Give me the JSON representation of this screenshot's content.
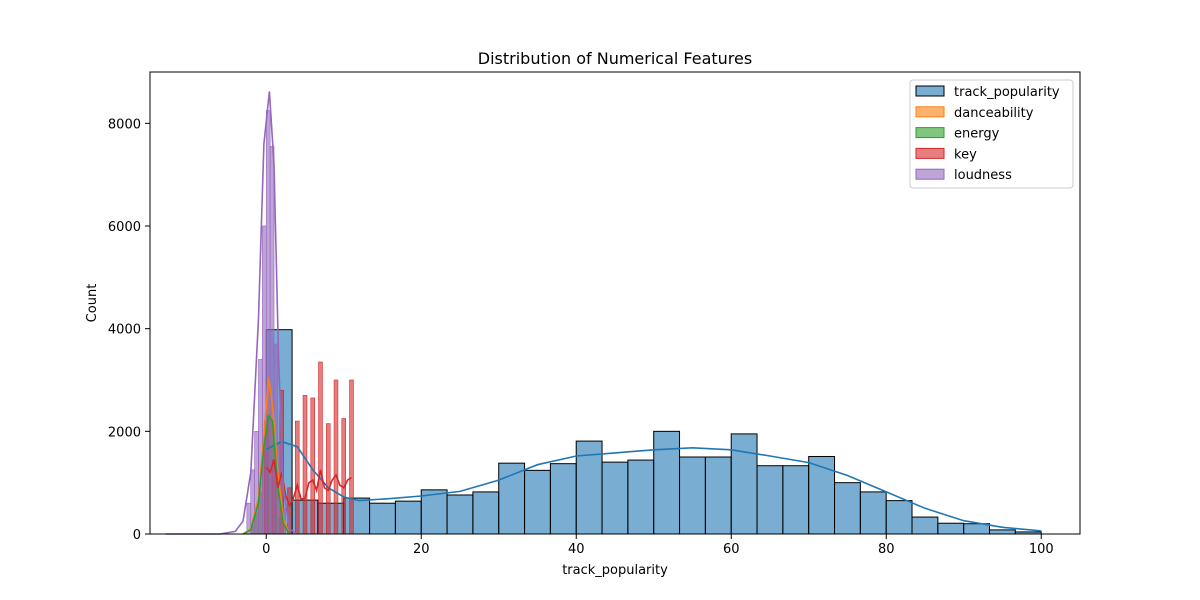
{
  "chart_data": {
    "type": "histogram",
    "title": "Distribution of Numerical Features",
    "xlabel": "track_popularity",
    "ylabel": "Count",
    "xlim": [
      -15,
      105
    ],
    "ylim": [
      0,
      9000
    ],
    "xticks": [
      0,
      20,
      40,
      60,
      80,
      100
    ],
    "yticks": [
      0,
      2000,
      4000,
      6000,
      8000
    ],
    "legend_position": "top-right",
    "series": [
      {
        "name": "track_popularity",
        "color": "#1f77b4",
        "bin_start": 0,
        "bin_width": 3.333,
        "values": [
          3980,
          660,
          600,
          700,
          600,
          640,
          860,
          760,
          820,
          1380,
          1240,
          1370,
          1810,
          1400,
          1440,
          2000,
          1500,
          1500,
          1950,
          1330,
          1330,
          1510,
          1000,
          820,
          650,
          330,
          210,
          200,
          80,
          40
        ],
        "kde": [
          [
            0,
            1650
          ],
          [
            2,
            1800
          ],
          [
            4,
            1700
          ],
          [
            6,
            1250
          ],
          [
            8,
            900
          ],
          [
            10,
            720
          ],
          [
            12,
            650
          ],
          [
            16,
            690
          ],
          [
            20,
            740
          ],
          [
            25,
            830
          ],
          [
            30,
            1050
          ],
          [
            35,
            1350
          ],
          [
            40,
            1520
          ],
          [
            45,
            1580
          ],
          [
            50,
            1640
          ],
          [
            55,
            1680
          ],
          [
            60,
            1640
          ],
          [
            65,
            1520
          ],
          [
            70,
            1390
          ],
          [
            75,
            1140
          ],
          [
            80,
            820
          ],
          [
            85,
            500
          ],
          [
            90,
            260
          ],
          [
            95,
            130
          ],
          [
            100,
            60
          ]
        ]
      },
      {
        "name": "danceability",
        "color": "#ff7f0e",
        "bins": [
          [
            -2.0,
            -1.5,
            200
          ],
          [
            -1.5,
            -1.0,
            500
          ],
          [
            -1.0,
            -0.5,
            1000
          ],
          [
            -0.5,
            0.0,
            1800
          ],
          [
            0.0,
            0.5,
            2900
          ],
          [
            0.5,
            1.0,
            2400
          ],
          [
            1.0,
            1.5,
            1400
          ],
          [
            1.5,
            2.0,
            500
          ],
          [
            2.0,
            2.5,
            150
          ]
        ],
        "kde": [
          [
            -3,
            0
          ],
          [
            -2,
            100
          ],
          [
            -1,
            700
          ],
          [
            -0.3,
            1900
          ],
          [
            0.3,
            3050
          ],
          [
            0.8,
            2500
          ],
          [
            1.5,
            1200
          ],
          [
            2.2,
            300
          ],
          [
            3,
            0
          ]
        ]
      },
      {
        "name": "energy",
        "color": "#2ca02c",
        "bins": [
          [
            -2.0,
            -1.5,
            150
          ],
          [
            -1.5,
            -1.0,
            400
          ],
          [
            -1.0,
            -0.5,
            800
          ],
          [
            -0.5,
            0.0,
            1600
          ],
          [
            0.0,
            0.5,
            2300
          ],
          [
            0.5,
            1.0,
            2200
          ],
          [
            1.0,
            1.5,
            1000
          ],
          [
            1.5,
            2.0,
            300
          ]
        ],
        "kde": [
          [
            -3,
            0
          ],
          [
            -2,
            80
          ],
          [
            -1,
            600
          ],
          [
            -0.3,
            1700
          ],
          [
            0.3,
            2300
          ],
          [
            0.8,
            2200
          ],
          [
            1.5,
            900
          ],
          [
            2.2,
            200
          ],
          [
            3,
            0
          ]
        ]
      },
      {
        "name": "key",
        "color": "#d62728",
        "bins": [
          [
            -0.25,
            0.25,
            2200
          ],
          [
            0.75,
            1.25,
            1450
          ],
          [
            1.75,
            2.25,
            2800
          ],
          [
            2.75,
            3.25,
            900
          ],
          [
            3.75,
            4.25,
            2200
          ],
          [
            4.75,
            5.25,
            2700
          ],
          [
            5.75,
            6.25,
            2650
          ],
          [
            6.75,
            7.25,
            3350
          ],
          [
            7.75,
            8.25,
            2150
          ],
          [
            8.75,
            9.25,
            3000
          ],
          [
            9.75,
            10.25,
            2250
          ],
          [
            10.75,
            11.25,
            3000
          ]
        ],
        "kde": [
          [
            0,
            1300
          ],
          [
            0.5,
            1200
          ],
          [
            1,
            1450
          ],
          [
            1.5,
            900
          ],
          [
            2,
            1200
          ],
          [
            2.5,
            750
          ],
          [
            3,
            550
          ],
          [
            3.5,
            700
          ],
          [
            4,
            950
          ],
          [
            4.5,
            680
          ],
          [
            5,
            700
          ],
          [
            5.5,
            1000
          ],
          [
            6,
            1050
          ],
          [
            6.5,
            850
          ],
          [
            7,
            1250
          ],
          [
            7.5,
            900
          ],
          [
            8,
            850
          ],
          [
            8.5,
            1050
          ],
          [
            9,
            1150
          ],
          [
            9.5,
            950
          ],
          [
            10,
            900
          ],
          [
            10.5,
            1050
          ],
          [
            11,
            1100
          ]
        ]
      },
      {
        "name": "loudness",
        "color": "#9467bd",
        "bins": [
          [
            -2.5,
            -2.0,
            600
          ],
          [
            -2.0,
            -1.5,
            1250
          ],
          [
            -1.5,
            -1.0,
            2000
          ],
          [
            -1.0,
            -0.5,
            3400
          ],
          [
            -0.5,
            0.0,
            6000
          ],
          [
            0.0,
            0.5,
            8250
          ],
          [
            0.5,
            1.0,
            7550
          ],
          [
            1.0,
            1.5,
            3700
          ],
          [
            1.5,
            2.0,
            1800
          ],
          [
            2.0,
            2.5,
            500
          ]
        ],
        "kde": [
          [
            -13,
            0
          ],
          [
            -6,
            0
          ],
          [
            -4,
            50
          ],
          [
            -3,
            250
          ],
          [
            -2,
            1200
          ],
          [
            -1,
            4200
          ],
          [
            -0.3,
            7600
          ],
          [
            0.4,
            8620
          ],
          [
            1,
            7200
          ],
          [
            1.6,
            3400
          ],
          [
            2.2,
            900
          ],
          [
            3,
            100
          ],
          [
            4,
            0
          ]
        ]
      }
    ]
  }
}
